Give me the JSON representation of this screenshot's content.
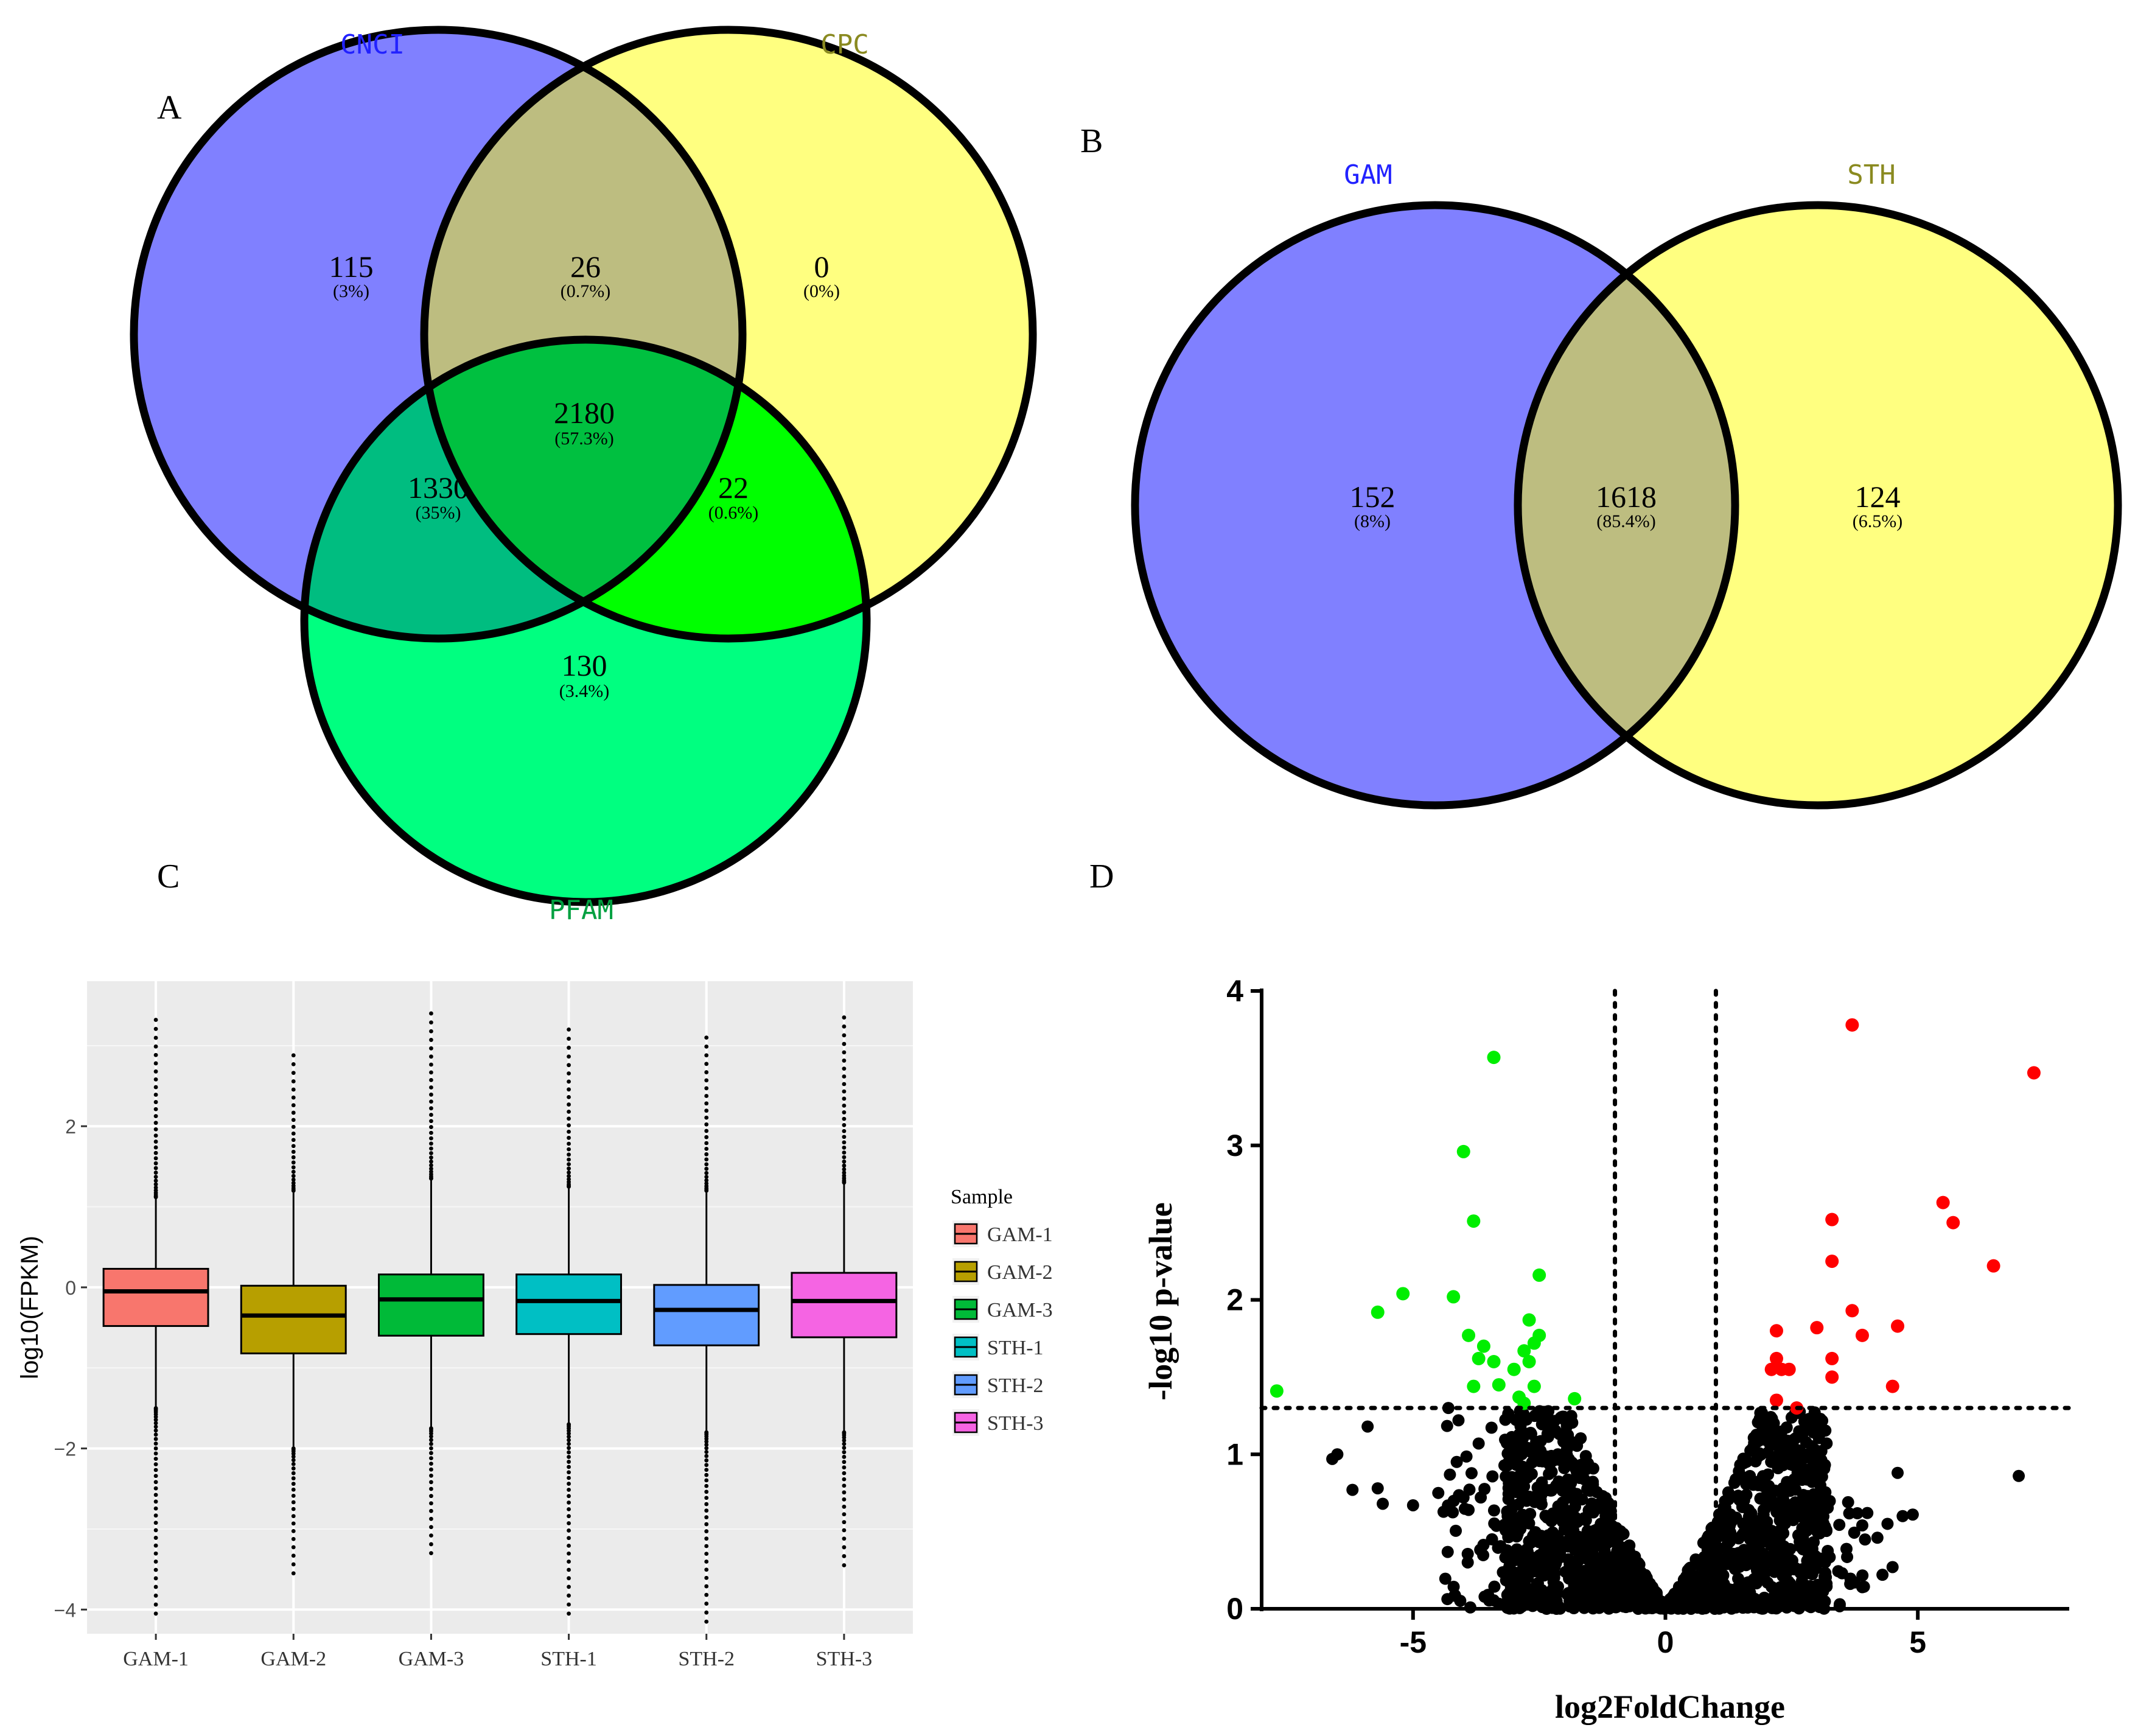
{
  "panel_labels": {
    "a": "A",
    "b": "B",
    "c": "C",
    "d": "D"
  },
  "colors": {
    "cnci": "#8080ff",
    "cpc": "#ffff80",
    "pfam": "#00ff80",
    "cnci_cpc": "#bdbd80",
    "cnci_pfam": "#00bd80",
    "cpc_pfam": "#00ff00",
    "all_three": "#00c040",
    "gam": "#8080ff",
    "sth": "#ffff80",
    "gam_sth": "#bdbd80",
    "label_blue": "#2222ff",
    "label_olive": "#8a8a20",
    "label_green": "#00a040",
    "up": "#ff0000",
    "down": "#00ee00",
    "ns": "#000000"
  },
  "chart_data": [
    {
      "type": "venn",
      "sets": [
        "CNCI",
        "CPC",
        "PFAM"
      ],
      "regions": [
        {
          "key": "cnci_only",
          "count": "115",
          "pct": "(3%)"
        },
        {
          "key": "cnci_cpc",
          "count": "26",
          "pct": "(0.7%)"
        },
        {
          "key": "cpc_only",
          "count": "0",
          "pct": "(0%)"
        },
        {
          "key": "all_three",
          "count": "2180",
          "pct": "(57.3%)"
        },
        {
          "key": "cnci_pfam",
          "count": "1330",
          "pct": "(35%)"
        },
        {
          "key": "cpc_pfam",
          "count": "22",
          "pct": "(0.6%)"
        },
        {
          "key": "pfam_only",
          "count": "130",
          "pct": "(3.4%)"
        }
      ]
    },
    {
      "type": "venn",
      "sets": [
        "GAM",
        "STH"
      ],
      "regions": [
        {
          "key": "gam_only",
          "count": "152",
          "pct": "(8%)"
        },
        {
          "key": "both",
          "count": "1618",
          "pct": "(85.4%)"
        },
        {
          "key": "sth_only",
          "count": "124",
          "pct": "(6.5%)"
        }
      ]
    },
    {
      "type": "boxplot",
      "ylabel": "log10(FPKM)",
      "ylim": [
        -4.3,
        3.8
      ],
      "yticks": [
        -4,
        -2,
        0,
        2
      ],
      "ytick_labels": [
        "−4",
        "−2",
        "0",
        "2"
      ],
      "legend_title": "Sample",
      "legend_position": "right",
      "grid": true,
      "series": [
        {
          "name": "GAM-1",
          "color": "#f8766d",
          "q1": -0.48,
          "median": -0.05,
          "q3": 0.23,
          "whisker_low": -1.5,
          "whisker_high": 1.12,
          "out_min": -4.05,
          "out_max": 3.32
        },
        {
          "name": "GAM-2",
          "color": "#b79f00",
          "q1": -0.82,
          "median": -0.35,
          "q3": 0.02,
          "whisker_low": -2.0,
          "whisker_high": 1.2,
          "out_min": -3.55,
          "out_max": 2.88
        },
        {
          "name": "GAM-3",
          "color": "#00ba38",
          "q1": -0.6,
          "median": -0.15,
          "q3": 0.16,
          "whisker_low": -1.75,
          "whisker_high": 1.35,
          "out_min": -3.3,
          "out_max": 3.4
        },
        {
          "name": "STH-1",
          "color": "#00bfc4",
          "q1": -0.58,
          "median": -0.17,
          "q3": 0.16,
          "whisker_low": -1.7,
          "whisker_high": 1.25,
          "out_min": -4.05,
          "out_max": 3.2
        },
        {
          "name": "STH-2",
          "color": "#619cff",
          "q1": -0.72,
          "median": -0.28,
          "q3": 0.03,
          "whisker_low": -1.8,
          "whisker_high": 1.2,
          "out_min": -4.15,
          "out_max": 3.1
        },
        {
          "name": "STH-3",
          "color": "#f564e3",
          "q1": -0.62,
          "median": -0.17,
          "q3": 0.18,
          "whisker_low": -1.8,
          "whisker_high": 1.3,
          "out_min": -3.45,
          "out_max": 3.35
        }
      ]
    },
    {
      "type": "scatter",
      "xlabel": "log2FoldChange",
      "ylabel": "-log10 p-value",
      "xlim": [
        -8,
        8
      ],
      "ylim": [
        0,
        4
      ],
      "xticks": [
        -5,
        0,
        5
      ],
      "xtick_labels": [
        "-5",
        "0",
        "5"
      ],
      "yticks": [
        0,
        1,
        2,
        3,
        4
      ],
      "ytick_labels": [
        "0",
        "1",
        "2",
        "3",
        "4"
      ],
      "thresholds": {
        "fc": [
          -1,
          1
        ],
        "p": 1.3
      },
      "up": [
        [
          3.7,
          3.78
        ],
        [
          7.3,
          3.47
        ],
        [
          5.5,
          2.63
        ],
        [
          5.7,
          2.5
        ],
        [
          3.3,
          2.52
        ],
        [
          6.5,
          2.22
        ],
        [
          3.3,
          2.25
        ],
        [
          3.7,
          1.93
        ],
        [
          3.9,
          1.77
        ],
        [
          4.6,
          1.83
        ],
        [
          3.0,
          1.82
        ],
        [
          2.2,
          1.8
        ],
        [
          3.3,
          1.62
        ],
        [
          2.2,
          1.62
        ],
        [
          2.3,
          1.55
        ],
        [
          2.1,
          1.55
        ],
        [
          2.45,
          1.55
        ],
        [
          3.3,
          1.5
        ],
        [
          4.5,
          1.44
        ],
        [
          2.2,
          1.35
        ],
        [
          2.6,
          1.3
        ]
      ],
      "down": [
        [
          -3.4,
          3.57
        ],
        [
          -4.0,
          2.96
        ],
        [
          -3.8,
          2.51
        ],
        [
          -2.5,
          2.16
        ],
        [
          -5.2,
          2.04
        ],
        [
          -5.7,
          1.92
        ],
        [
          -4.2,
          2.02
        ],
        [
          -3.9,
          1.77
        ],
        [
          -2.7,
          1.87
        ],
        [
          -2.5,
          1.77
        ],
        [
          -2.6,
          1.72
        ],
        [
          -3.6,
          1.7
        ],
        [
          -2.8,
          1.67
        ],
        [
          -3.4,
          1.6
        ],
        [
          -3.7,
          1.62
        ],
        [
          -2.7,
          1.6
        ],
        [
          -3.0,
          1.55
        ],
        [
          -3.3,
          1.45
        ],
        [
          -3.8,
          1.44
        ],
        [
          -2.6,
          1.44
        ],
        [
          -2.9,
          1.37
        ],
        [
          -2.8,
          1.33
        ],
        [
          -1.8,
          1.36
        ],
        [
          -7.7,
          1.41
        ]
      ],
      "ns_outer": [
        [
          -6.6,
          0.97
        ],
        [
          -6.5,
          1.0
        ],
        [
          -5.9,
          1.18
        ],
        [
          -6.2,
          0.77
        ],
        [
          -5.7,
          0.78
        ],
        [
          -5.6,
          0.68
        ],
        [
          -5.0,
          0.67
        ],
        [
          -4.5,
          0.75
        ],
        [
          -4.3,
          1.3
        ],
        [
          -4.1,
          1.22
        ],
        [
          -4.0,
          0.72
        ],
        [
          -3.9,
          0.64
        ],
        [
          -3.7,
          1.07
        ],
        [
          7.0,
          0.86
        ],
        [
          4.9,
          0.61
        ],
        [
          4.7,
          0.6
        ],
        [
          4.6,
          0.88
        ],
        [
          4.4,
          0.55
        ],
        [
          4.2,
          0.46
        ],
        [
          4.0,
          0.62
        ],
        [
          3.9,
          0.54
        ],
        [
          4.5,
          0.27
        ],
        [
          4.3,
          0.22
        ],
        [
          3.9,
          0.14
        ],
        [
          3.5,
          0.23
        ]
      ]
    }
  ]
}
